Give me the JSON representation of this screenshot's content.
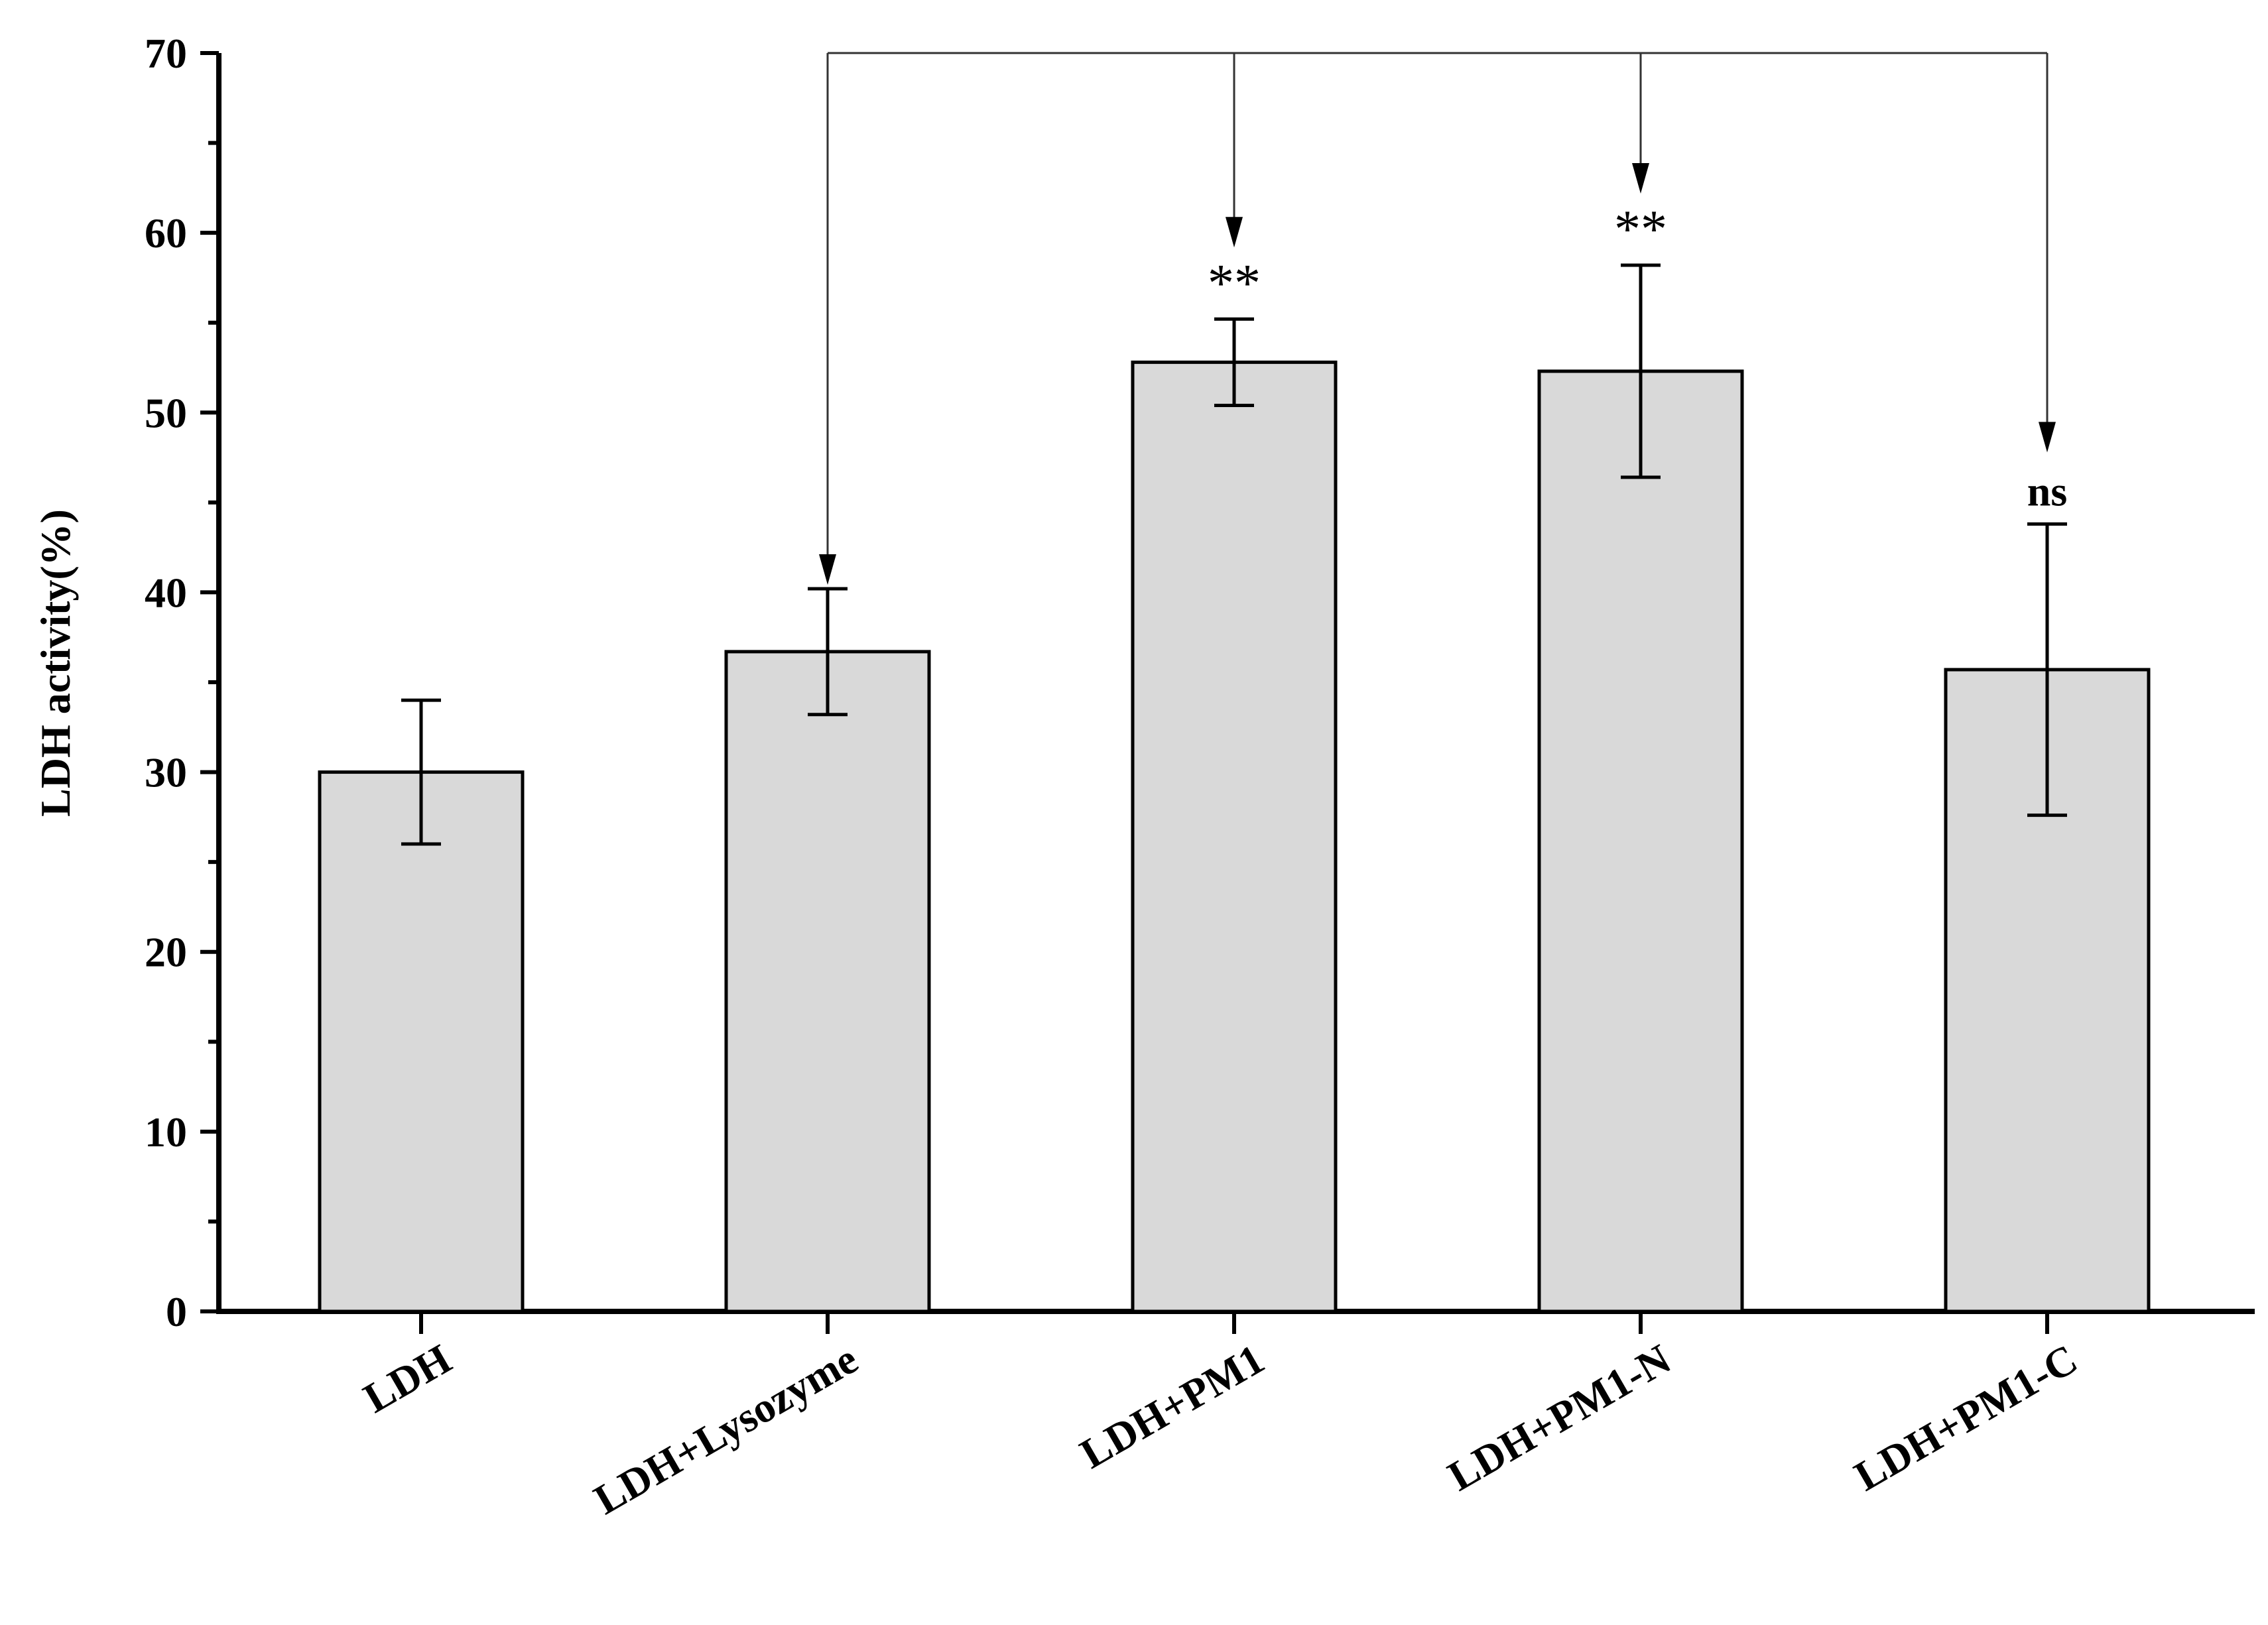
{
  "chart_data": {
    "type": "bar",
    "title": "",
    "xlabel": "",
    "ylabel": "LDH activity(%)",
    "ylim": [
      0,
      70
    ],
    "yticks": [
      0,
      10,
      20,
      30,
      40,
      50,
      60,
      70
    ],
    "categories": [
      "LDH",
      "LDH+Lysozyme",
      "LDH+PM1",
      "LDH+PM1-N",
      "LDH+PM1-C"
    ],
    "values": [
      30.0,
      36.7,
      52.8,
      52.3,
      35.7
    ],
    "errors": [
      4.0,
      3.5,
      2.4,
      5.9,
      8.1
    ],
    "bar_color": "#d9d9d9",
    "edge_color": "#000000",
    "grid": false,
    "comparison": {
      "reference": "LDH+Lysozyme",
      "targets": [
        "LDH+PM1",
        "LDH+PM1-N",
        "LDH+PM1-C"
      ],
      "labels": [
        "**",
        "**",
        "ns"
      ]
    }
  }
}
